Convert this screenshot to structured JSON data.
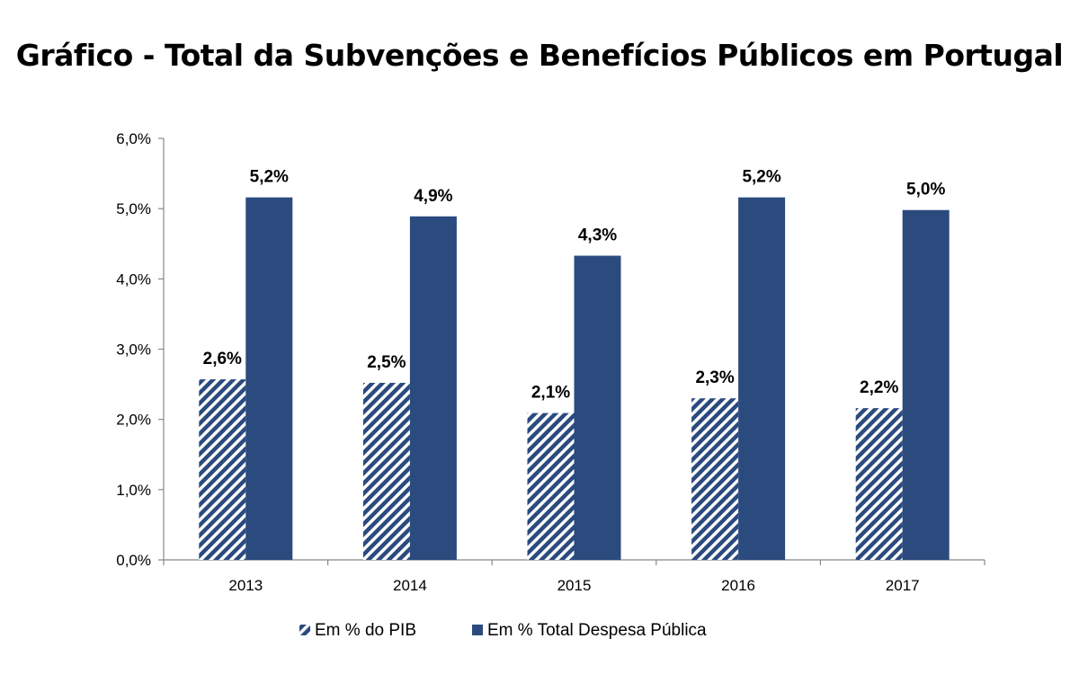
{
  "chart_data": {
    "type": "bar",
    "title": "Gráfico - Total da Subvenções e Benefícios Públicos em Portugal",
    "categories": [
      "2013",
      "2014",
      "2015",
      "2016",
      "2017"
    ],
    "series": [
      {
        "name": "Em % do PIB",
        "values": [
          2.57,
          2.52,
          2.09,
          2.3,
          2.16
        ],
        "labels": [
          "2,6%",
          "2,5%",
          "2,1%",
          "2,3%",
          "2,2%"
        ],
        "color": "#2b4a7e",
        "pattern": "diagonal-hatch"
      },
      {
        "name": "Em % Total Despesa Pública",
        "values": [
          5.16,
          4.89,
          4.33,
          5.16,
          4.98
        ],
        "labels": [
          "5,2%",
          "4,9%",
          "4,3%",
          "5,2%",
          "5,0%"
        ],
        "color": "#2b4a7e",
        "pattern": "solid"
      }
    ],
    "ylim": [
      0,
      6
    ],
    "yticks": [
      0,
      1,
      2,
      3,
      4,
      5,
      6
    ],
    "ytick_labels": [
      "0,0%",
      "1,0%",
      "2,0%",
      "3,0%",
      "4,0%",
      "5,0%",
      "6,0%"
    ],
    "xlabel": "",
    "ylabel": "",
    "grid": false,
    "legend_position": "bottom"
  }
}
